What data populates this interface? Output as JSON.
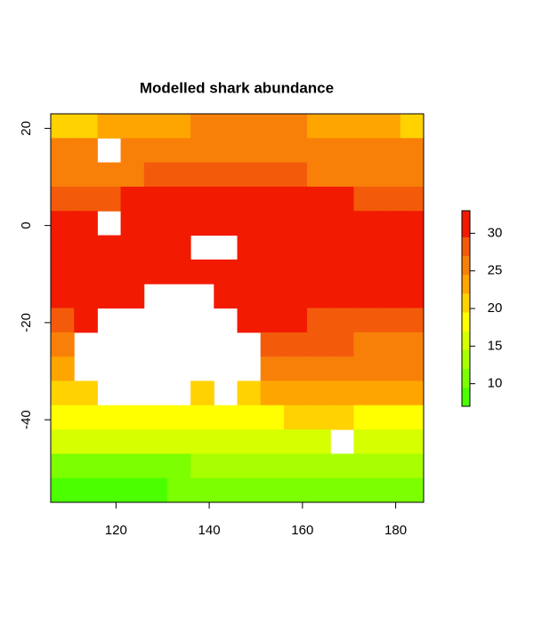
{
  "chart_data": {
    "type": "raster",
    "title": "Modelled shark abundance",
    "x": [
      108.5,
      113.5,
      118.5,
      123.5,
      128.5,
      133.5,
      138.5,
      143.5,
      148.5,
      153.5,
      158.5,
      163.5,
      168.5,
      173.5,
      178.5,
      183.5
    ],
    "y": [
      20.5,
      15.5,
      10.5,
      5.5,
      0.5,
      -4.5,
      -9.5,
      -14.5,
      -19.5,
      -24.5,
      -29.5,
      -34.5,
      -39.5,
      -44.5,
      -49.5,
      -54.5
    ],
    "cell_size": 5,
    "values": [
      [
        21,
        22,
        23,
        24,
        24,
        24,
        25,
        25,
        25,
        25,
        25,
        24,
        24,
        23,
        23,
        22
      ],
      [
        25,
        25,
        null,
        26,
        26,
        26,
        26,
        26,
        26,
        26,
        26,
        26,
        26,
        26,
        26,
        25
      ],
      [
        27,
        27,
        27,
        27,
        28,
        28,
        28,
        28,
        28,
        28,
        28,
        27,
        27,
        27,
        27,
        27
      ],
      [
        29,
        29,
        29,
        30,
        30,
        30,
        30,
        30,
        30,
        30,
        30,
        30,
        30,
        29,
        29,
        29
      ],
      [
        31,
        31,
        null,
        31,
        31,
        31,
        31,
        31,
        31,
        31,
        31,
        31,
        31,
        31,
        30,
        30
      ],
      [
        31,
        31,
        31,
        31,
        31,
        31,
        null,
        null,
        31,
        31,
        31,
        31,
        31,
        31,
        31,
        31
      ],
      [
        31,
        31,
        31,
        31,
        31,
        31,
        31,
        31,
        31,
        31,
        31,
        31,
        31,
        31,
        31,
        31
      ],
      [
        30,
        31,
        31,
        31,
        null,
        null,
        null,
        31,
        31,
        31,
        31,
        31,
        30,
        30,
        30,
        30
      ],
      [
        29,
        30,
        null,
        null,
        null,
        null,
        null,
        null,
        31,
        30,
        30,
        29,
        29,
        29,
        29,
        28
      ],
      [
        27,
        null,
        null,
        null,
        null,
        null,
        null,
        null,
        null,
        28,
        28,
        28,
        28,
        27,
        27,
        27
      ],
      [
        24,
        null,
        null,
        null,
        null,
        null,
        null,
        null,
        null,
        26,
        26,
        26,
        26,
        26,
        25,
        25
      ],
      [
        21,
        21,
        null,
        null,
        null,
        null,
        21,
        null,
        21,
        23,
        24,
        24,
        24,
        24,
        23,
        23
      ],
      [
        18,
        18,
        18,
        18,
        18,
        18,
        18,
        18,
        19,
        19,
        20,
        20,
        20,
        19,
        19,
        19
      ],
      [
        15,
        15,
        15,
        15,
        15,
        15,
        15,
        16,
        16,
        16,
        17,
        17,
        null,
        17,
        17,
        17
      ],
      [
        12,
        12,
        12,
        12,
        12,
        12,
        13,
        13,
        13,
        13,
        13,
        14,
        14,
        14,
        14,
        14
      ],
      [
        9,
        9,
        9,
        9,
        9,
        10,
        10,
        10,
        10,
        10,
        10,
        11,
        11,
        11,
        11,
        11
      ]
    ],
    "xlim": [
      106,
      186
    ],
    "ylim": [
      -57,
      23
    ],
    "xticks": [
      120,
      140,
      160,
      180
    ],
    "yticks": [
      -40,
      -20,
      0,
      20
    ],
    "colorbar": {
      "breaks": [
        7,
        9.5,
        12,
        14.5,
        17,
        19.5,
        22,
        24.5,
        27,
        29.5,
        33
      ],
      "colors": [
        "#4cff00",
        "#7cff00",
        "#a8ff00",
        "#d6ff00",
        "#ffff00",
        "#ffd200",
        "#ffa500",
        "#f98008",
        "#f35b0b",
        "#f21a00"
      ],
      "zlim": [
        7,
        33
      ],
      "zticks": [
        10,
        15,
        20,
        25,
        30
      ]
    }
  }
}
